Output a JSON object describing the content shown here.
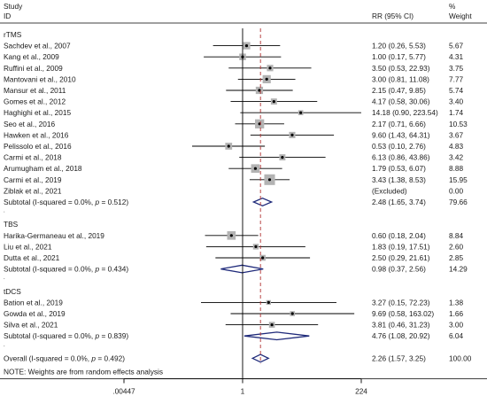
{
  "chart_data": {
    "type": "forest",
    "header": {
      "study": "Study",
      "id": "ID",
      "rr": "RR (95% CI)",
      "pct": "%",
      "weight": "Weight"
    },
    "x_ticks": [
      {
        "value": 0.00447,
        "label": ".00447"
      },
      {
        "value": 1,
        "label": "1"
      },
      {
        "value": 224,
        "label": "224"
      }
    ],
    "x_range": [
      0.00447,
      224
    ],
    "scale": "log",
    "null_line": 1,
    "overall_line": 2.26,
    "groups": [
      {
        "name": "rTMS",
        "studies": [
          {
            "label": "Sachdev et al., 2007",
            "rr": 1.2,
            "lo": 0.26,
            "hi": 5.53,
            "ci_text": "1.20 (0.26, 5.53)",
            "weight": "5.67",
            "w": 5.67
          },
          {
            "label": "Kang et al., 2009",
            "rr": 1.0,
            "lo": 0.17,
            "hi": 5.77,
            "ci_text": "1.00 (0.17, 5.77)",
            "weight": "4.31",
            "w": 4.31
          },
          {
            "label": "Ruffini et al., 2009",
            "rr": 3.5,
            "lo": 0.53,
            "hi": 22.93,
            "ci_text": "3.50 (0.53, 22.93)",
            "weight": "3.75",
            "w": 3.75
          },
          {
            "label": "Mantovani et al., 2010",
            "rr": 3.0,
            "lo": 0.81,
            "hi": 11.08,
            "ci_text": "3.00 (0.81, 11.08)",
            "weight": "7.77",
            "w": 7.77
          },
          {
            "label": "Mansur et al., 2011",
            "rr": 2.15,
            "lo": 0.47,
            "hi": 9.85,
            "ci_text": "2.15 (0.47, 9.85)",
            "weight": "5.74",
            "w": 5.74
          },
          {
            "label": "Gomes et al., 2012",
            "rr": 4.17,
            "lo": 0.58,
            "hi": 30.06,
            "ci_text": "4.17 (0.58, 30.06)",
            "weight": "3.40",
            "w": 3.4
          },
          {
            "label": "Haghighi et al., 2015",
            "rr": 14.18,
            "lo": 0.9,
            "hi": 223.54,
            "ci_text": "14.18 (0.90, 223.54)",
            "weight": "1.74",
            "w": 1.74
          },
          {
            "label": "Seo et al., 2016",
            "rr": 2.17,
            "lo": 0.71,
            "hi": 6.66,
            "ci_text": "2.17 (0.71, 6.66)",
            "weight": "10.53",
            "w": 10.53
          },
          {
            "label": "Hawken et al., 2016",
            "rr": 9.6,
            "lo": 1.43,
            "hi": 64.31,
            "ci_text": "9.60 (1.43, 64.31)",
            "weight": "3.67",
            "w": 3.67
          },
          {
            "label": "Pelissolo et al., 2016",
            "rr": 0.53,
            "lo": 0.1,
            "hi": 2.76,
            "ci_text": "0.53 (0.10, 2.76)",
            "weight": "4.83",
            "w": 4.83
          },
          {
            "label": "Carmi et al., 2018",
            "rr": 6.13,
            "lo": 0.86,
            "hi": 43.86,
            "ci_text": "6.13 (0.86, 43.86)",
            "weight": "3.42",
            "w": 3.42
          },
          {
            "label": "Arumugham et al., 2018",
            "rr": 1.79,
            "lo": 0.53,
            "hi": 6.07,
            "ci_text": "1.79 (0.53, 6.07)",
            "weight": "8.88",
            "w": 8.88
          },
          {
            "label": "Carmi et al., 2019",
            "rr": 3.43,
            "lo": 1.38,
            "hi": 8.53,
            "ci_text": "3.43 (1.38, 8.53)",
            "weight": "15.95",
            "w": 15.95
          },
          {
            "label": "Ziblak et al., 2021",
            "rr": null,
            "lo": null,
            "hi": null,
            "ci_text": "(Excluded)",
            "weight": "0.00",
            "w": 0
          }
        ],
        "subtotal": {
          "label": "Subtotal  (I-squared = 0.0%, p = 0.512)",
          "label_pre": "Subtotal  (I-squared = 0.0%, ",
          "label_p": "p",
          "label_post": " = 0.512)",
          "rr": 2.48,
          "lo": 1.65,
          "hi": 3.74,
          "ci_text": "2.48 (1.65, 3.74)",
          "weight": "79.66"
        }
      },
      {
        "name": "TBS",
        "studies": [
          {
            "label": "Harika-Germaneau et al., 2019",
            "rr": 0.6,
            "lo": 0.18,
            "hi": 2.04,
            "ci_text": "0.60 (0.18, 2.04)",
            "weight": "8.84",
            "w": 8.84
          },
          {
            "label": "Liu et al., 2021",
            "rr": 1.83,
            "lo": 0.19,
            "hi": 17.51,
            "ci_text": "1.83 (0.19, 17.51)",
            "weight": "2.60",
            "w": 2.6
          },
          {
            "label": "Dutta et al., 2021",
            "rr": 2.5,
            "lo": 0.29,
            "hi": 21.61,
            "ci_text": "2.50 (0.29, 21.61)",
            "weight": "2.85",
            "w": 2.85
          }
        ],
        "subtotal": {
          "label": "Subtotal  (I-squared = 0.0%, p = 0.434)",
          "label_pre": "Subtotal  (I-squared = 0.0%, ",
          "label_p": "p",
          "label_post": " = 0.434)",
          "rr": 0.98,
          "lo": 0.37,
          "hi": 2.56,
          "ci_text": "0.98 (0.37, 2.56)",
          "weight": "14.29"
        }
      },
      {
        "name": "tDCS",
        "studies": [
          {
            "label": "Bation et al., 2019",
            "rr": 3.27,
            "lo": 0.15,
            "hi": 72.23,
            "ci_text": "3.27 (0.15, 72.23)",
            "weight": "1.38",
            "w": 1.38
          },
          {
            "label": "Gowda et al., 2019",
            "rr": 9.69,
            "lo": 0.58,
            "hi": 163.02,
            "ci_text": "9.69 (0.58, 163.02)",
            "weight": "1.66",
            "w": 1.66
          },
          {
            "label": "Silva et al., 2021",
            "rr": 3.81,
            "lo": 0.46,
            "hi": 31.23,
            "ci_text": "3.81 (0.46, 31.23)",
            "weight": "3.00",
            "w": 3.0
          }
        ],
        "subtotal": {
          "label": "Subtotal  (I-squared = 0.0%, p = 0.839)",
          "label_pre": "Subtotal  (I-squared = 0.0%, ",
          "label_p": "p",
          "label_post": " = 0.839)",
          "rr": 4.76,
          "lo": 1.08,
          "hi": 20.92,
          "ci_text": "4.76 (1.08, 20.92)",
          "weight": "6.04"
        }
      }
    ],
    "overall": {
      "label": "Overall  (I-squared = 0.0%, p = 0.492)",
      "label_pre": "Overall  (I-squared = 0.0%, ",
      "label_p": "p",
      "label_post": " = 0.492)",
      "rr": 2.26,
      "lo": 1.57,
      "hi": 3.25,
      "ci_text": "2.26 (1.57, 3.25)",
      "weight": "100.00"
    },
    "note": "NOTE: Weights are from random effects analysis",
    "colors": {
      "diamond": "#1f2a7a",
      "box": "#b3b3b3",
      "overall_line": "#b03030",
      "line": "#000000"
    }
  }
}
